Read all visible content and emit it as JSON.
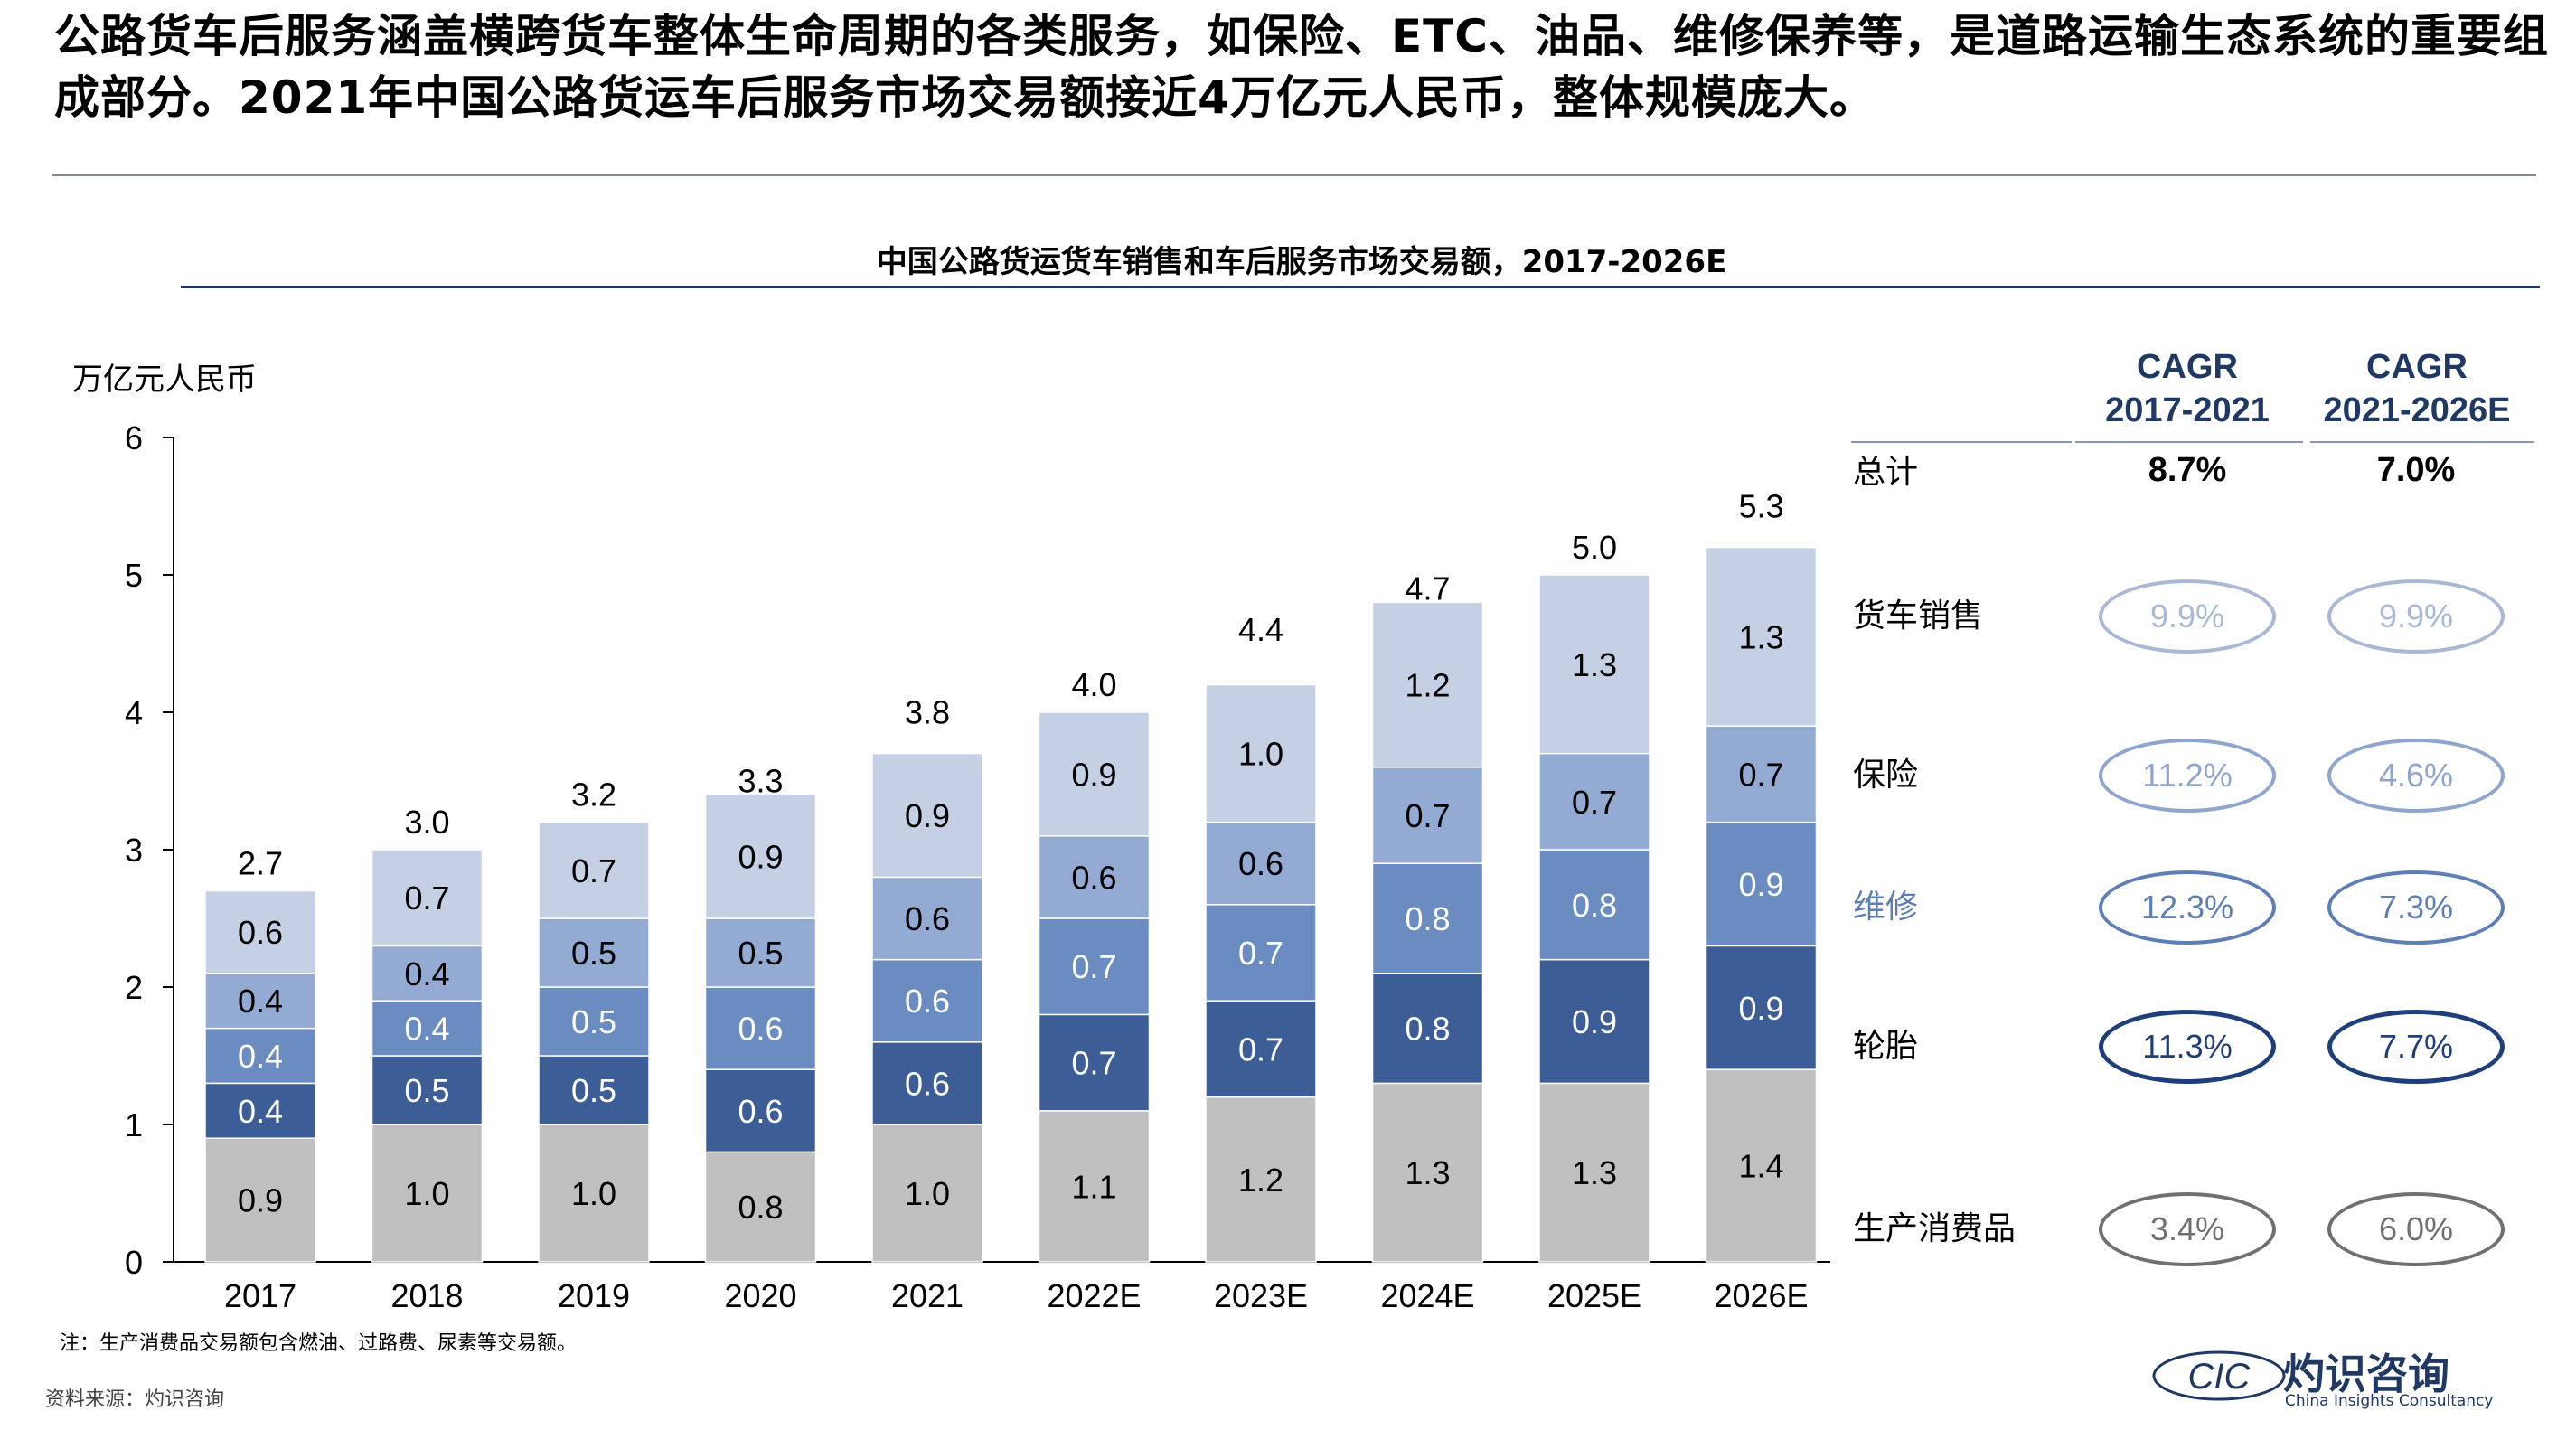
{
  "headline": "公路货车后服务涵盖横跨货车整体生命周期的各类服务，如保险、ETC、油品、维修保养等，是道路运输生态系统的重要组成部分。2021年中国公路货运车后服务市场交易额接近4万亿元人民币，整体规模庞大。",
  "chart_data": {
    "type": "bar",
    "stacked": true,
    "title": "中国公路货运货车销售和车后服务市场交易额，2017-2026E",
    "ylabel": "万亿元人民币",
    "xlabel": "",
    "ylim": [
      0,
      6
    ],
    "yticks": [
      "0",
      "1",
      "2",
      "3",
      "4",
      "5",
      "6"
    ],
    "grid": false,
    "categories": [
      "2017",
      "2018",
      "2019",
      "2020",
      "2021",
      "2022E",
      "2023E",
      "2024E",
      "2025E",
      "2026E"
    ],
    "totals": [
      "2.7",
      "3.0",
      "3.2",
      "3.3",
      "3.8",
      "4.0",
      "4.4",
      "4.7",
      "5.0",
      "5.3"
    ],
    "total_values": [
      2.7,
      3.0,
      3.2,
      3.3,
      3.8,
      4.0,
      4.4,
      4.7,
      5.0,
      5.3
    ],
    "series": [
      {
        "name": "生产消费品",
        "color": "#c0c0c0",
        "values": [
          0.9,
          1.0,
          1.0,
          0.8,
          1.0,
          1.1,
          1.2,
          1.3,
          1.3,
          1.4
        ],
        "labels": [
          "0.9",
          "1.0",
          "1.0",
          "0.8",
          "1.0",
          "1.1",
          "1.2",
          "1.3",
          "1.3",
          "1.4"
        ]
      },
      {
        "name": "轮胎",
        "color": "#3d5d96",
        "values": [
          0.4,
          0.5,
          0.5,
          0.6,
          0.6,
          0.7,
          0.7,
          0.8,
          0.9,
          0.9
        ],
        "labels": [
          "0.4",
          "0.5",
          "0.5",
          "0.6",
          "0.6",
          "0.7",
          "0.7",
          "0.8",
          "0.9",
          "0.9"
        ]
      },
      {
        "name": "维修",
        "color": "#6a8cc0",
        "values": [
          0.4,
          0.4,
          0.5,
          0.6,
          0.6,
          0.7,
          0.7,
          0.8,
          0.8,
          0.9
        ],
        "labels": [
          "0.4",
          "0.4",
          "0.5",
          "0.6",
          "0.6",
          "0.7",
          "0.7",
          "0.8",
          "0.8",
          "0.9"
        ]
      },
      {
        "name": "保险",
        "color": "#93aad2",
        "values": [
          0.4,
          0.4,
          0.5,
          0.5,
          0.6,
          0.6,
          0.6,
          0.7,
          0.7,
          0.7
        ],
        "labels": [
          "0.4",
          "0.4",
          "0.5",
          "0.5",
          "0.6",
          "0.6",
          "0.6",
          "0.7",
          "0.7",
          "0.7"
        ]
      },
      {
        "name": "货车销售",
        "color": "#c5d0e5",
        "values": [
          0.6,
          0.7,
          0.7,
          0.9,
          0.9,
          0.9,
          1.0,
          1.2,
          1.3,
          1.3
        ],
        "labels": [
          "0.6",
          "0.7",
          "0.7",
          "0.9",
          "0.9",
          "0.9",
          "1.0",
          "1.2",
          "1.3",
          "1.3"
        ]
      }
    ]
  },
  "cagr_table": {
    "col1_head": [
      "CAGR",
      "2017-2021"
    ],
    "col2_head": [
      "CAGR",
      "2021-2026E"
    ],
    "rows": [
      {
        "label": "总计",
        "v1": "8.7%",
        "v2": "7.0%"
      },
      {
        "label": "货车销售",
        "v1": "9.9%",
        "v2": "9.9%",
        "color": "#a9b8d6"
      },
      {
        "label": "保险",
        "v1": "11.2%",
        "v2": "4.6%",
        "color": "#8ea5cf"
      },
      {
        "label": "维修",
        "v1": "12.3%",
        "v2": "7.3%",
        "color": "#5e7fb6"
      },
      {
        "label": "轮胎",
        "v1": "11.3%",
        "v2": "7.7%",
        "color": "#1f3f7a"
      },
      {
        "label": "生产消费品",
        "v1": "3.4%",
        "v2": "6.0%",
        "color": "#707070"
      }
    ]
  },
  "note": "注：生产消费品交易额包含燃油、过路费、尿素等交易额。",
  "source": "资料来源：灼识咨询",
  "logo": {
    "mark": "CIC",
    "name": "灼识咨询",
    "subtitle": "China Insights Consultancy"
  }
}
